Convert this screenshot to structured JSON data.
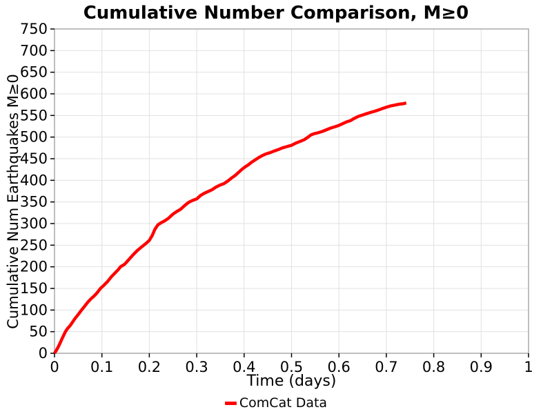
{
  "page": {
    "background": "#ffffff"
  },
  "style_colors": {
    "line_red": "#ff0000",
    "grid": "#e0e0e0",
    "plot_border": "#a8a8a8",
    "tick": "#000000",
    "text": "#000000"
  },
  "chart_data": {
    "type": "line",
    "title": "Cumulative Number Comparison, M≥0",
    "xlabel": "Time (days)",
    "ylabel": "Cumulative Num Earthquakes M≥0",
    "xlim": [
      0,
      1
    ],
    "ylim": [
      0,
      750
    ],
    "grid": true,
    "x_ticks": [
      {
        "v": 0,
        "label": "0"
      },
      {
        "v": 0.1,
        "label": "0.1"
      },
      {
        "v": 0.2,
        "label": "0.2"
      },
      {
        "v": 0.3,
        "label": "0.3"
      },
      {
        "v": 0.4,
        "label": "0.4"
      },
      {
        "v": 0.5,
        "label": "0.5"
      },
      {
        "v": 0.6,
        "label": "0.6"
      },
      {
        "v": 0.7,
        "label": "0.7"
      },
      {
        "v": 0.8,
        "label": "0.8"
      },
      {
        "v": 0.9,
        "label": "0.9"
      },
      {
        "v": 1,
        "label": "1"
      }
    ],
    "y_ticks": [
      {
        "v": 0,
        "label": "0"
      },
      {
        "v": 50,
        "label": "50"
      },
      {
        "v": 100,
        "label": "100"
      },
      {
        "v": 150,
        "label": "150"
      },
      {
        "v": 200,
        "label": "200"
      },
      {
        "v": 250,
        "label": "250"
      },
      {
        "v": 300,
        "label": "300"
      },
      {
        "v": 350,
        "label": "350"
      },
      {
        "v": 400,
        "label": "400"
      },
      {
        "v": 450,
        "label": "450"
      },
      {
        "v": 500,
        "label": "500"
      },
      {
        "v": 550,
        "label": "550"
      },
      {
        "v": 600,
        "label": "600"
      },
      {
        "v": 650,
        "label": "650"
      },
      {
        "v": 700,
        "label": "700"
      },
      {
        "v": 750,
        "label": "750"
      }
    ],
    "legend": {
      "position": "bottom-center",
      "entries": [
        {
          "label": "ComCat Data",
          "color": "#ff0000"
        }
      ]
    },
    "series": [
      {
        "name": "ComCat Data",
        "color": "#ff0000",
        "line_width": 4.5,
        "points": [
          [
            0,
            0
          ],
          [
            0.004,
            7
          ],
          [
            0.008,
            15
          ],
          [
            0.012,
            24
          ],
          [
            0.016,
            34
          ],
          [
            0.02,
            43
          ],
          [
            0.023,
            50
          ],
          [
            0.028,
            58
          ],
          [
            0.033,
            64
          ],
          [
            0.038,
            72
          ],
          [
            0.043,
            80
          ],
          [
            0.048,
            87
          ],
          [
            0.053,
            94
          ],
          [
            0.057,
            100
          ],
          [
            0.063,
            108
          ],
          [
            0.07,
            118
          ],
          [
            0.077,
            126
          ],
          [
            0.084,
            133
          ],
          [
            0.09,
            140
          ],
          [
            0.097,
            150
          ],
          [
            0.104,
            157
          ],
          [
            0.112,
            166
          ],
          [
            0.12,
            177
          ],
          [
            0.128,
            186
          ],
          [
            0.134,
            193
          ],
          [
            0.139,
            200
          ],
          [
            0.148,
            206
          ],
          [
            0.157,
            217
          ],
          [
            0.166,
            228
          ],
          [
            0.175,
            238
          ],
          [
            0.185,
            247
          ],
          [
            0.193,
            254
          ],
          [
            0.2,
            261
          ],
          [
            0.206,
            272
          ],
          [
            0.212,
            287
          ],
          [
            0.218,
            297
          ],
          [
            0.225,
            302
          ],
          [
            0.232,
            306
          ],
          [
            0.24,
            312
          ],
          [
            0.25,
            322
          ],
          [
            0.258,
            328
          ],
          [
            0.266,
            333
          ],
          [
            0.274,
            341
          ],
          [
            0.283,
            349
          ],
          [
            0.292,
            354
          ],
          [
            0.3,
            357
          ],
          [
            0.308,
            365
          ],
          [
            0.316,
            370
          ],
          [
            0.324,
            374
          ],
          [
            0.332,
            378
          ],
          [
            0.34,
            384
          ],
          [
            0.349,
            389
          ],
          [
            0.357,
            392
          ],
          [
            0.365,
            398
          ],
          [
            0.373,
            405
          ],
          [
            0.381,
            411
          ],
          [
            0.389,
            419
          ],
          [
            0.396,
            426
          ],
          [
            0.402,
            431
          ],
          [
            0.409,
            436
          ],
          [
            0.416,
            442
          ],
          [
            0.423,
            447
          ],
          [
            0.43,
            452
          ],
          [
            0.438,
            457
          ],
          [
            0.446,
            461
          ],
          [
            0.455,
            464
          ],
          [
            0.464,
            468
          ],
          [
            0.472,
            471
          ],
          [
            0.481,
            475
          ],
          [
            0.49,
            478
          ],
          [
            0.5,
            481
          ],
          [
            0.509,
            486
          ],
          [
            0.518,
            490
          ],
          [
            0.527,
            494
          ],
          [
            0.535,
            500
          ],
          [
            0.541,
            505
          ],
          [
            0.548,
            508
          ],
          [
            0.556,
            510
          ],
          [
            0.565,
            513
          ],
          [
            0.574,
            517
          ],
          [
            0.583,
            521
          ],
          [
            0.592,
            524
          ],
          [
            0.6,
            527
          ],
          [
            0.608,
            531
          ],
          [
            0.616,
            535
          ],
          [
            0.624,
            538
          ],
          [
            0.632,
            543
          ],
          [
            0.641,
            548
          ],
          [
            0.65,
            551
          ],
          [
            0.658,
            554
          ],
          [
            0.667,
            557
          ],
          [
            0.676,
            560
          ],
          [
            0.684,
            563
          ],
          [
            0.692,
            566
          ],
          [
            0.7,
            569
          ],
          [
            0.709,
            572
          ],
          [
            0.718,
            574
          ],
          [
            0.727,
            576
          ],
          [
            0.735,
            577
          ],
          [
            0.742,
            579
          ]
        ]
      }
    ]
  }
}
